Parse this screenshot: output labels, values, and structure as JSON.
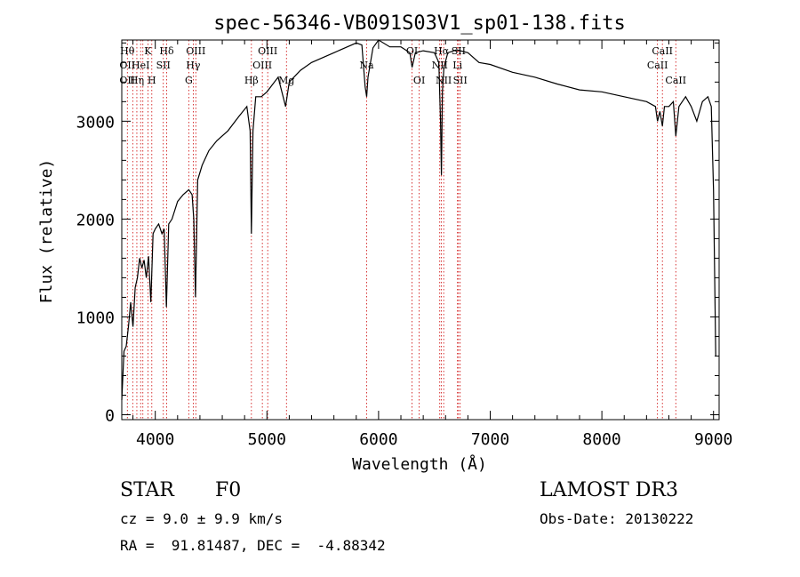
{
  "chart_data": {
    "type": "line",
    "title": "spec-56346-VB091S03V1_sp01-138.fits",
    "xlabel": "Wavelength (Å)",
    "ylabel": "Flux (relative)",
    "xlim": [
      3700,
      9050
    ],
    "ylim": [
      -50,
      3830
    ],
    "x_ticks": [
      4000,
      5000,
      6000,
      7000,
      8000,
      9000
    ],
    "y_ticks": [
      0,
      1000,
      2000,
      3000
    ],
    "grid": false,
    "series": [
      {
        "x": [
          3700,
          3720,
          3740,
          3760,
          3780,
          3800,
          3820,
          3840,
          3860,
          3880,
          3900,
          3920,
          3940,
          3960,
          3980,
          4000,
          4030,
          4060,
          4080,
          4100,
          4120,
          4150,
          4200,
          4250,
          4300,
          4330,
          4345,
          4360,
          4380,
          4420,
          4480,
          4550,
          4650,
          4750,
          4820,
          4850,
          4861,
          4875,
          4900,
          4950,
          5000,
          5100,
          5167,
          5200,
          5300,
          5400,
          5500,
          5600,
          5700,
          5800,
          5850,
          5880,
          5893,
          5905,
          5950,
          6000,
          6100,
          6200,
          6280,
          6300,
          6330,
          6400,
          6500,
          6540,
          6555,
          6563,
          6572,
          6585,
          6620,
          6700,
          6800,
          6900,
          7000,
          7200,
          7400,
          7600,
          7800,
          8000,
          8200,
          8400,
          8480,
          8498,
          8520,
          8542,
          8560,
          8600,
          8640,
          8662,
          8690,
          8750,
          8800,
          8850,
          8900,
          8950,
          8980,
          9000,
          9020
        ],
        "y": [
          150,
          650,
          700,
          900,
          1150,
          900,
          1300,
          1400,
          1600,
          1500,
          1580,
          1400,
          1620,
          1150,
          1850,
          1900,
          1950,
          1850,
          1900,
          1100,
          1950,
          2000,
          2180,
          2250,
          2300,
          2250,
          2000,
          1200,
          2400,
          2550,
          2700,
          2800,
          2900,
          3050,
          3150,
          2900,
          1850,
          2900,
          3250,
          3250,
          3300,
          3450,
          3150,
          3400,
          3520,
          3600,
          3650,
          3700,
          3750,
          3800,
          3780,
          3350,
          3250,
          3450,
          3750,
          3830,
          3760,
          3760,
          3700,
          3550,
          3700,
          3720,
          3700,
          3600,
          3000,
          2450,
          3300,
          3550,
          3700,
          3730,
          3700,
          3600,
          3580,
          3500,
          3450,
          3380,
          3320,
          3300,
          3250,
          3200,
          3150,
          3000,
          3100,
          2950,
          3150,
          3150,
          3200,
          2850,
          3150,
          3250,
          3150,
          3000,
          3200,
          3250,
          3150,
          2300,
          600
        ]
      }
    ],
    "lines": [
      {
        "wl": 3750,
        "labels": [
          {
            "t": "Hθ",
            "row": 1
          },
          {
            "t": "OII",
            "row": 2
          },
          {
            "t": "OII",
            "row": 3
          }
        ]
      },
      {
        "wl": 3798,
        "labels": []
      },
      {
        "wl": 3835,
        "labels": [
          {
            "t": "Hη",
            "row": 3
          }
        ]
      },
      {
        "wl": 3869,
        "labels": [
          {
            "t": "HeI",
            "row": 2
          }
        ]
      },
      {
        "wl": 3889,
        "labels": []
      },
      {
        "wl": 3934,
        "labels": [
          {
            "t": "K",
            "row": 1
          }
        ]
      },
      {
        "wl": 3969,
        "labels": [
          {
            "t": "H",
            "row": 3
          }
        ]
      },
      {
        "wl": 4072,
        "labels": [
          {
            "t": "SII",
            "row": 2
          }
        ]
      },
      {
        "wl": 4102,
        "labels": [
          {
            "t": "Hδ",
            "row": 1
          }
        ]
      },
      {
        "wl": 4300,
        "labels": [
          {
            "t": "G",
            "row": 3
          }
        ]
      },
      {
        "wl": 4340,
        "labels": [
          {
            "t": "Hγ",
            "row": 2
          }
        ]
      },
      {
        "wl": 4363,
        "labels": [
          {
            "t": "OIII",
            "row": 1
          }
        ]
      },
      {
        "wl": 4861,
        "labels": [
          {
            "t": "Hβ",
            "row": 3
          }
        ]
      },
      {
        "wl": 4959,
        "labels": [
          {
            "t": "OIII",
            "row": 2
          }
        ]
      },
      {
        "wl": 5007,
        "labels": [
          {
            "t": "OIII",
            "row": 1
          }
        ]
      },
      {
        "wl": 5175,
        "labels": [
          {
            "t": "Mg",
            "row": 3
          }
        ]
      },
      {
        "wl": 5893,
        "labels": [
          {
            "t": "Na",
            "row": 2
          }
        ]
      },
      {
        "wl": 6300,
        "labels": [
          {
            "t": "OI",
            "row": 1
          }
        ]
      },
      {
        "wl": 6364,
        "labels": [
          {
            "t": "OI",
            "row": 3
          }
        ]
      },
      {
        "wl": 6548,
        "labels": [
          {
            "t": "NII",
            "row": 2
          }
        ]
      },
      {
        "wl": 6563,
        "labels": [
          {
            "t": "Hα",
            "row": 1
          }
        ]
      },
      {
        "wl": 6583,
        "labels": [
          {
            "t": "NII",
            "row": 3
          }
        ]
      },
      {
        "wl": 6707,
        "labels": [
          {
            "t": "Li",
            "row": 2
          }
        ]
      },
      {
        "wl": 6716,
        "labels": [
          {
            "t": "SII",
            "row": 1
          }
        ]
      },
      {
        "wl": 6731,
        "labels": [
          {
            "t": "SII",
            "row": 3
          }
        ]
      },
      {
        "wl": 8498,
        "labels": [
          {
            "t": "CaII",
            "row": 2
          }
        ]
      },
      {
        "wl": 8542,
        "labels": [
          {
            "t": "CaII",
            "row": 1
          }
        ]
      },
      {
        "wl": 8662,
        "labels": [
          {
            "t": "CaII",
            "row": 3
          }
        ]
      }
    ]
  },
  "info": {
    "class": "STAR",
    "subclass": "F0",
    "survey": "LAMOST DR3",
    "cz": "cz = 9.0 ± 9.9 km/s",
    "obs_date": "Obs-Date: 20130222",
    "radec": "RA =  91.81487, DEC =  -4.88342"
  },
  "colors": {
    "line": "#000000",
    "marker": "#cc0000"
  }
}
